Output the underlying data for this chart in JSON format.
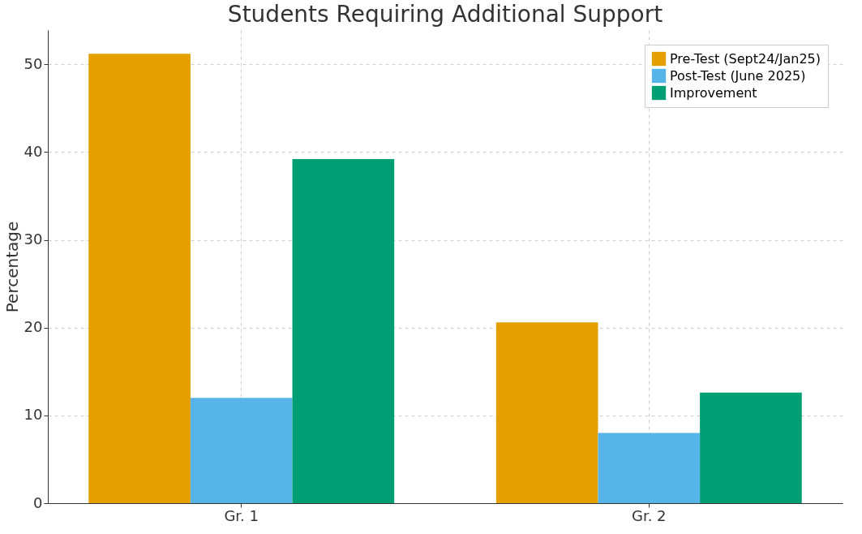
{
  "chart_data": {
    "type": "bar",
    "title": "Students Requiring Additional Support",
    "ylabel": "Percentage",
    "categories": [
      "Gr. 1",
      "Gr. 2"
    ],
    "series": [
      {
        "name": "Pre-Test (Sept24/Jan25)",
        "color": "#e69f00",
        "values": [
          51.2,
          20.6
        ]
      },
      {
        "name": "Post-Test (June 2025)",
        "color": "#56b4e9",
        "values": [
          12.0,
          8.0
        ]
      },
      {
        "name": "Improvement",
        "color": "#009e73",
        "values": [
          39.2,
          12.6
        ]
      }
    ],
    "ylim": [
      0,
      53.9
    ],
    "yticks": [
      0,
      10,
      20,
      30,
      40,
      50
    ],
    "grid": true,
    "legend": "top right"
  }
}
